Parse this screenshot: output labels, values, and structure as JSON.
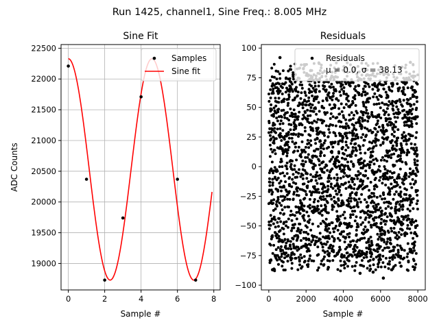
{
  "suptitle": "Run 1425, channel1, Sine Freq.: 8.005 MHz",
  "chart_data": [
    {
      "type": "line",
      "title": "Sine Fit",
      "xlabel": "Sample #",
      "ylabel": "ADC Counts",
      "xlim": [
        -0.4,
        8.35
      ],
      "ylim": [
        18570,
        22560
      ],
      "xticks": [
        0,
        2,
        4,
        6,
        8
      ],
      "yticks": [
        19000,
        19500,
        20000,
        20500,
        21000,
        21500,
        22000,
        22500
      ],
      "grid": true,
      "legend_position": "top-right",
      "series": [
        {
          "name": "Samples",
          "style": "points",
          "color": "#000000",
          "x": [
            0,
            1,
            2,
            3,
            4,
            4.7,
            6,
            7
          ],
          "y": [
            22210,
            20370,
            18730,
            19740,
            21710,
            22330,
            20370,
            18730
          ]
        },
        {
          "name": "Sine fit",
          "style": "line",
          "color": "#ff0000",
          "model": {
            "mean": 20530,
            "amplitude": 1800,
            "period_samples": 4.6,
            "phase_rad": 1.571,
            "x_start": 0,
            "x_end": 7.9
          }
        }
      ]
    },
    {
      "type": "scatter",
      "title": "Residuals",
      "xlabel": "Sample #",
      "ylabel": "",
      "xlim": [
        -400,
        8400
      ],
      "ylim": [
        -104,
        103
      ],
      "xticks": [
        0,
        2000,
        4000,
        6000,
        8000
      ],
      "yticks": [
        -100,
        -75,
        -50,
        -25,
        0,
        25,
        50,
        75,
        100
      ],
      "grid": false,
      "legend_position": "top-right",
      "legend_entries": [
        "Residuals",
        "μ = 0.0, σ = 38.13"
      ],
      "series": [
        {
          "name": "Residuals",
          "color": "#000000",
          "n_points": 8000,
          "range": [
            -94,
            93
          ],
          "mean": 0.0,
          "sigma": 38.13,
          "highlighted_points": [
            [
              600,
              92
            ],
            [
              6150,
              -94
            ],
            [
              4900,
              -90
            ],
            [
              5600,
              -89
            ],
            [
              200,
              -87
            ],
            [
              7600,
              88
            ],
            [
              1900,
              86
            ],
            [
              3200,
              -85
            ],
            [
              7100,
              -84
            ],
            [
              2700,
              87
            ]
          ]
        }
      ]
    }
  ]
}
